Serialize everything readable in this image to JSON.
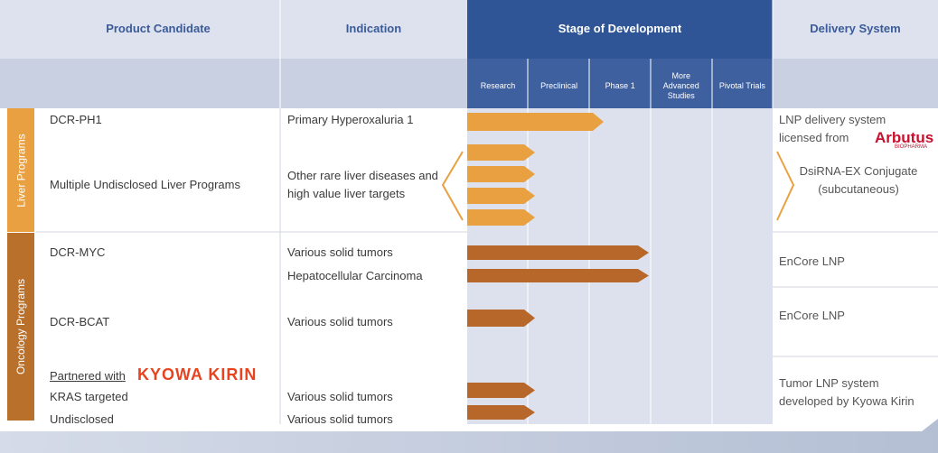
{
  "header": {
    "columns": [
      "Product Candidate",
      "Indication",
      "Stage of Development",
      "Delivery System"
    ]
  },
  "stages": [
    "Research",
    "Preclinical",
    "Phase 1",
    "More Advanced Studies",
    "Pivotal Trials"
  ],
  "groups": [
    "Liver Programs",
    "Oncology Programs"
  ],
  "products": [
    "DCR-PH1",
    "Multiple Undisclosed Liver Programs",
    "DCR-MYC",
    "DCR-BCAT",
    "Partnered with",
    "KRAS targeted",
    "Undisclosed"
  ],
  "partner_logo": "KYOWA KIRIN",
  "indications": [
    "Primary Hyperoxaluria 1",
    "Other rare liver diseases and high value liver targets",
    "Various solid tumors",
    "Hepatocellular Carcinoma",
    "Various solid tumors",
    "Various solid tumors",
    "Various solid tumors"
  ],
  "delivery": [
    "LNP delivery system licensed from",
    "DsiRNA-EX Conjugate (subcutaneous)",
    "EnCore LNP",
    "EnCore LNP",
    "Tumor LNP system developed by Kyowa Kirin"
  ],
  "licensor_logo": {
    "name": "Arbutus",
    "tag": "BIOPHARMA"
  }
}
